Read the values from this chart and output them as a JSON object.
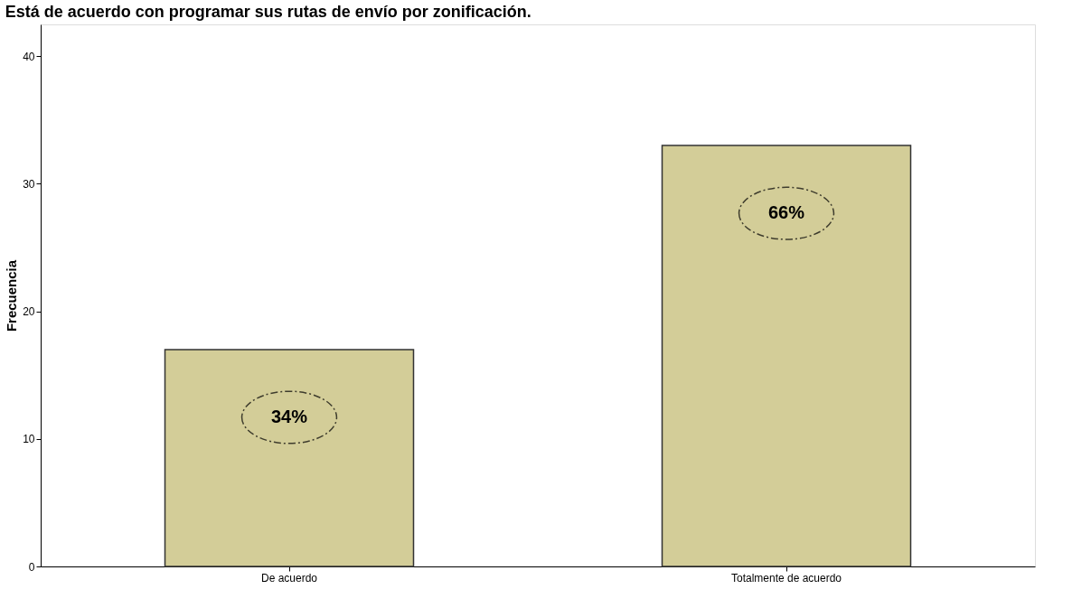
{
  "chart_data": {
    "type": "bar",
    "title": "Está de acuerdo con programar sus rutas de envío por zonificación.",
    "categories": [
      "De acuerdo",
      "Totalmente de acuerdo"
    ],
    "values": [
      17,
      33
    ],
    "color": "#d3cd98",
    "ylabel": "Frecuencia",
    "ylim": [
      0,
      42.5
    ],
    "yticks": [
      0,
      10,
      20,
      30,
      40
    ],
    "grid": false,
    "annotations": [
      "34%",
      "66%"
    ]
  }
}
